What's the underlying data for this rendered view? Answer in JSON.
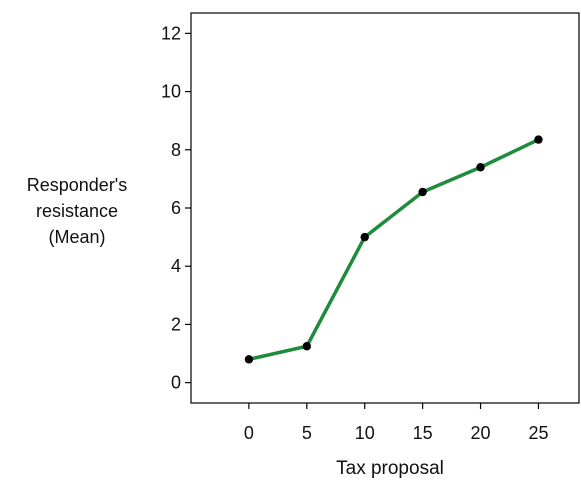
{
  "chart_data": {
    "type": "line",
    "xlabel": "Tax proposal",
    "ylabel": [
      "Responder's",
      "resistance",
      "(Mean)"
    ],
    "x": [
      0,
      5,
      10,
      15,
      20,
      25
    ],
    "series": [
      {
        "values": [
          0.8,
          1.25,
          5.0,
          6.55,
          7.4,
          8.35
        ]
      }
    ],
    "xticks": [
      "0",
      "5",
      "10",
      "15",
      "20",
      "25"
    ],
    "yticks": [
      "0",
      "2",
      "4",
      "6",
      "8",
      "10",
      "12"
    ],
    "ylim": [
      -0.7,
      12.7
    ],
    "xlim": [
      -5,
      28.5
    ],
    "grid": false,
    "colors": {
      "line": "#1f8c3c",
      "marker": "#000000",
      "axis": "#000000"
    }
  }
}
